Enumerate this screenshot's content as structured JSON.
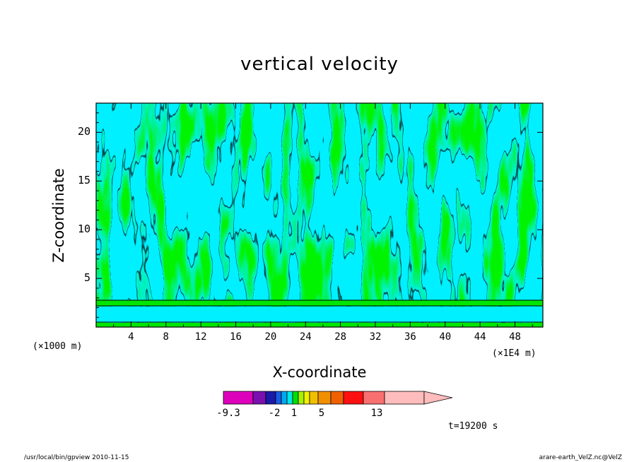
{
  "chart_data": {
    "type": "heatmap",
    "title": "vertical velocity",
    "xlabel": "X-coordinate",
    "ylabel": "Z-coordinate",
    "x_scale_note": "(×1000 m)",
    "x_unit_note": "(×1E4 m)",
    "x_ticks": [
      4,
      8,
      12,
      16,
      20,
      24,
      28,
      32,
      36,
      40,
      44,
      48
    ],
    "y_ticks": [
      5,
      10,
      15,
      20
    ],
    "xlim": [
      0,
      51.2
    ],
    "ylim": [
      0,
      23
    ],
    "colorbar": {
      "colors": [
        "#dd00bb",
        "#7a10b0",
        "#1a1aa8",
        "#1a5ae6",
        "#00a8f0",
        "#00e8e8",
        "#00e000",
        "#a8f000",
        "#f0f000",
        "#f0c000",
        "#f09000",
        "#f06000",
        "#ff1010",
        "#f87070",
        "#ffbcbc"
      ],
      "tick_labels": [
        "-9.3",
        "-2",
        "1",
        "5",
        "13"
      ]
    },
    "dominant_colors": {
      "negative": "#00f0ff",
      "positive": "#00e600",
      "contour": "#000000"
    }
  },
  "time_label": "t=19200 s",
  "footer": {
    "left": "/usr/local/bin/gpview   2010-11-15",
    "right": "arare-earth_VelZ.nc@VelZ"
  }
}
